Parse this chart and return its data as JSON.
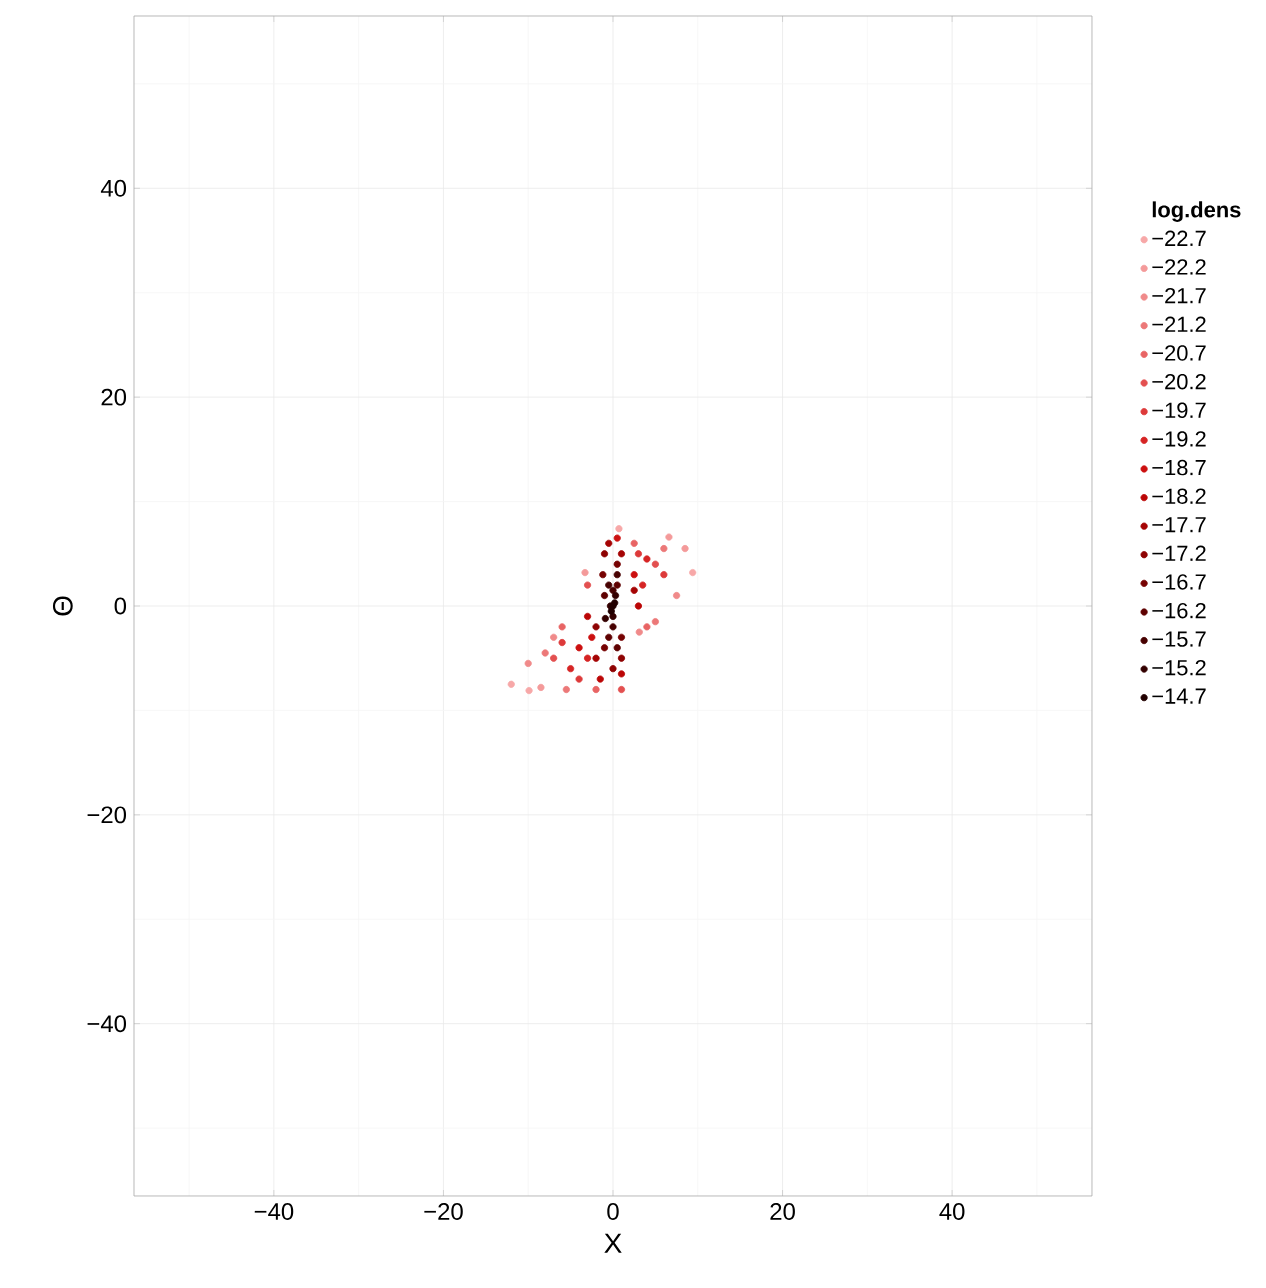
{
  "chart_data": {
    "type": "scatter",
    "xlabel": "X",
    "ylabel": "Θ",
    "legend_title": "log.dens",
    "legend": "right",
    "grid": true,
    "xlim": [
      -56.5,
      56.5
    ],
    "ylim": [
      -56.5,
      56.5
    ],
    "xticks": [
      {
        "value": -40,
        "label": "−40"
      },
      {
        "value": -20,
        "label": "−20"
      },
      0,
      20,
      40
    ],
    "yticks": [
      {
        "value": -40,
        "label": "−40"
      },
      {
        "value": -20,
        "label": "−20"
      },
      0,
      20,
      40
    ],
    "series": [
      {
        "name": "−22.7",
        "color": "#f7a8a8",
        "x": [
          -12,
          9.4,
          0.7,
          -9.9
        ],
        "values": [
          -7.5,
          3.2,
          7.4,
          -8.1
        ]
      },
      {
        "name": "−22.2",
        "color": "#f49a9a",
        "x": [
          6.6,
          -3.3,
          -8.5,
          8.5
        ],
        "values": [
          6.6,
          3.2,
          -7.8,
          5.5
        ]
      },
      {
        "name": "−21.7",
        "color": "#f08a8a",
        "x": [
          -7,
          3.1,
          -10,
          7.5
        ],
        "values": [
          -3,
          -2.5,
          -5.5,
          1
        ]
      },
      {
        "name": "−21.2",
        "color": "#ec7878",
        "x": [
          -5.5,
          5,
          -8,
          6
        ],
        "values": [
          -8,
          -1.5,
          -4.5,
          5.5
        ]
      },
      {
        "name": "−20.7",
        "color": "#e86464",
        "x": [
          -6,
          2.5,
          -2,
          4
        ],
        "values": [
          -2,
          6,
          -8,
          -2
        ]
      },
      {
        "name": "−20.2",
        "color": "#e35050",
        "x": [
          -3,
          -7,
          5,
          1
        ],
        "values": [
          2,
          -5,
          4,
          -8
        ]
      },
      {
        "name": "−19.7",
        "color": "#dd3a3a",
        "x": [
          -4,
          3,
          -6,
          6
        ],
        "values": [
          -7,
          5,
          -3.5,
          3
        ]
      },
      {
        "name": "−19.2",
        "color": "#d62424",
        "x": [
          -3,
          3.5,
          -5,
          4
        ],
        "values": [
          -5,
          2,
          -6,
          4.5
        ]
      },
      {
        "name": "−18.7",
        "color": "#cc1010",
        "x": [
          -2.5,
          2.5,
          -4,
          0.5
        ],
        "values": [
          -3,
          3,
          -4,
          6.5
        ]
      },
      {
        "name": "−18.2",
        "color": "#bb0606",
        "x": [
          -3,
          3,
          -1.5,
          1
        ],
        "values": [
          -1,
          0,
          -7,
          -6.5
        ]
      },
      {
        "name": "−17.7",
        "color": "#a50404",
        "x": [
          -2,
          2.5,
          -0.5,
          1
        ],
        "values": [
          -5,
          1.5,
          6,
          5
        ]
      },
      {
        "name": "−17.2",
        "color": "#8e0303",
        "x": [
          -2,
          0,
          -1,
          1
        ],
        "values": [
          -2,
          -6,
          5,
          -5
        ]
      },
      {
        "name": "−16.7",
        "color": "#760202",
        "x": [
          -1,
          0.5,
          -1.2,
          1
        ],
        "values": [
          -4,
          4,
          3,
          -3
        ]
      },
      {
        "name": "−16.2",
        "color": "#5e0101",
        "x": [
          -0.5,
          0.5,
          -1,
          0.5
        ],
        "values": [
          -3,
          2,
          1,
          -4
        ]
      },
      {
        "name": "−15.7",
        "color": "#470101",
        "x": [
          0,
          -0.5,
          0.5,
          0
        ],
        "values": [
          -2,
          2,
          3,
          1.5
        ]
      },
      {
        "name": "−15.2",
        "color": "#330000",
        "x": [
          0,
          -0.3,
          0.3,
          -0.9
        ],
        "values": [
          -1,
          0,
          1,
          -1.2
        ]
      },
      {
        "name": "−14.7",
        "color": "#220000",
        "x": [
          0,
          -0.2,
          0.2
        ],
        "values": [
          0,
          -0.5,
          0.3
        ]
      }
    ]
  }
}
